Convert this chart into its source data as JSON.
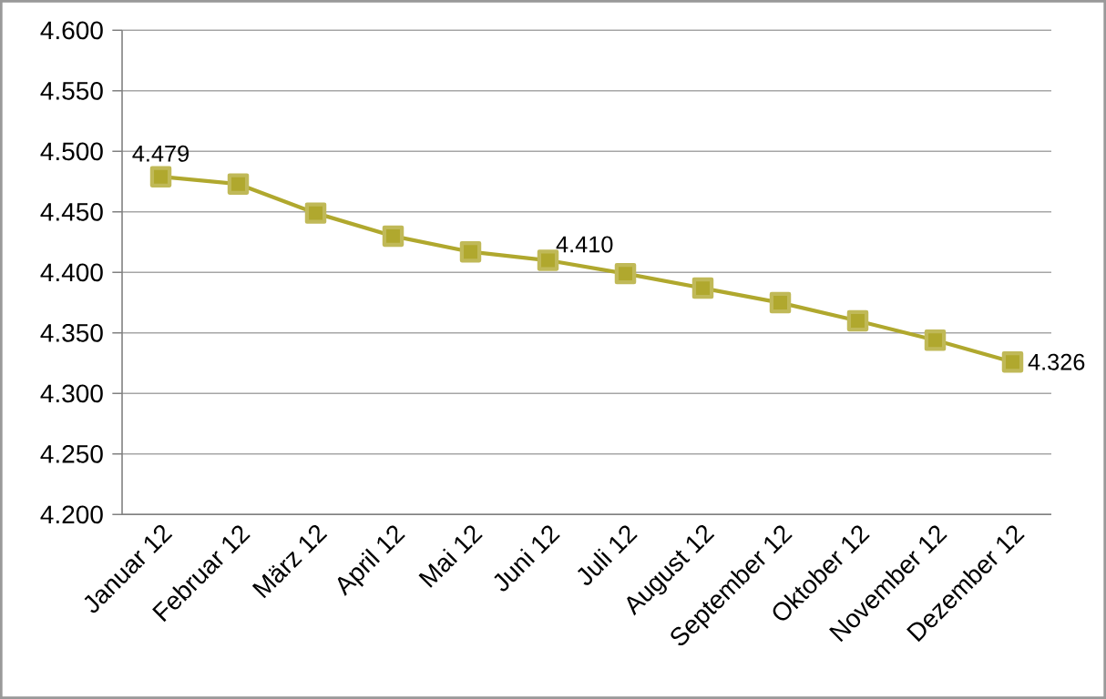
{
  "chart_data": {
    "type": "line",
    "categories": [
      "Januar 12",
      "Februar 12",
      "März 12",
      "April 12",
      "Mai 12",
      "Juni 12",
      "Juli 12",
      "August 12",
      "September 12",
      "Oktober 12",
      "November 12",
      "Dezember 12"
    ],
    "series": [
      {
        "color": "#b0a82e",
        "values": [
          4.479,
          4.473,
          4.449,
          4.43,
          4.417,
          4.41,
          4.399,
          4.387,
          4.375,
          4.36,
          4.344,
          4.326
        ],
        "value_labels": [
          "4.479",
          null,
          null,
          null,
          null,
          "4.410",
          null,
          null,
          null,
          null,
          null,
          "4.326"
        ]
      }
    ],
    "ylim": [
      4.2,
      4.6
    ],
    "yticks": [
      {
        "value": 4.2,
        "label": "4.200"
      },
      {
        "value": 4.25,
        "label": "4.250"
      },
      {
        "value": 4.3,
        "label": "4.300"
      },
      {
        "value": 4.35,
        "label": "4.350"
      },
      {
        "value": 4.4,
        "label": "4.400"
      },
      {
        "value": 4.45,
        "label": "4.450"
      },
      {
        "value": 4.5,
        "label": "4.500"
      },
      {
        "value": 4.55,
        "label": "4.550"
      },
      {
        "value": 4.6,
        "label": "4.600"
      }
    ],
    "grid": "y",
    "marker": "square",
    "line_style": "solid"
  }
}
